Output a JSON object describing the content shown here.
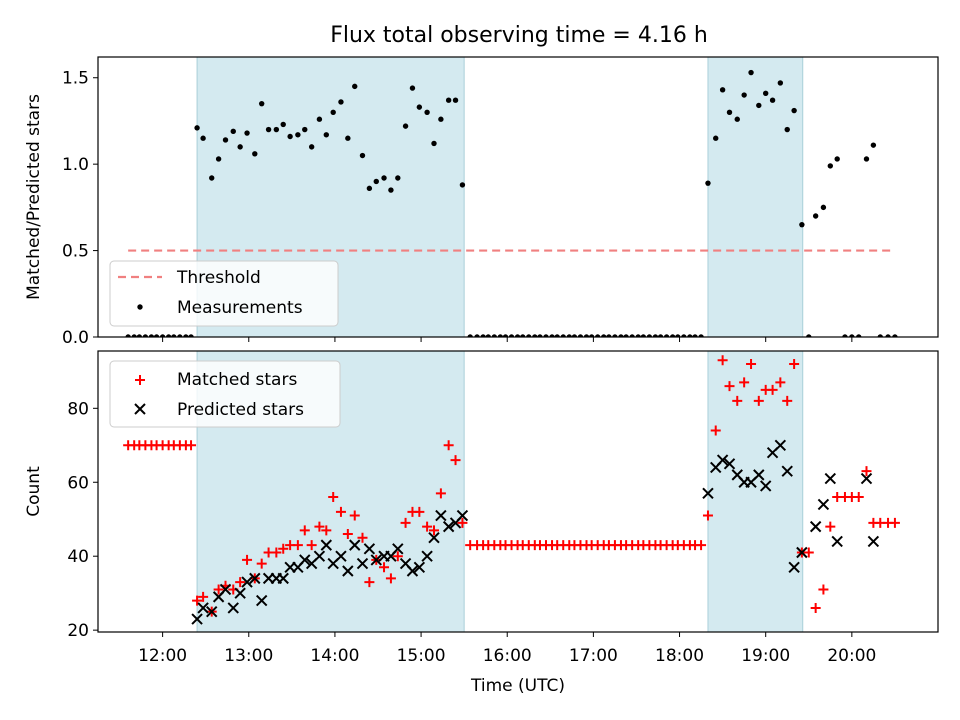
{
  "title": "Flux total observing time = 4.16 h",
  "colors": {
    "band": "#d4eaf0",
    "threshold": "#f08080",
    "matched": "#ff0000",
    "predicted": "#000000",
    "measurement": "#000000"
  },
  "chart_data": [
    {
      "type": "scatter",
      "panel": "top",
      "ylabel": "Matched/Predicted stars",
      "ylim": [
        0,
        1.62
      ],
      "xlim": [
        11.25,
        21.0
      ],
      "yticks": [
        0.0,
        0.5,
        1.0,
        1.5
      ],
      "ytick_labels": [
        "0.0",
        "0.5",
        "1.0",
        "1.5"
      ],
      "legend": {
        "location": "lower-left",
        "entries": [
          "Threshold",
          "Measurements"
        ]
      },
      "threshold": {
        "name": "Threshold",
        "value": 0.5,
        "x": [
          11.6,
          20.45
        ]
      },
      "shaded_intervals": [
        [
          12.4,
          15.5
        ],
        [
          18.33,
          19.43
        ]
      ],
      "series": [
        {
          "name": "Measurements",
          "marker": "dot",
          "x": [
            11.6,
            11.67,
            11.73,
            11.8,
            11.87,
            11.93,
            12.0,
            12.07,
            12.13,
            12.2,
            12.27,
            12.33,
            12.4,
            12.47,
            12.57,
            12.65,
            12.73,
            12.82,
            12.9,
            12.98,
            13.07,
            13.15,
            13.23,
            13.32,
            13.4,
            13.48,
            13.57,
            13.65,
            13.73,
            13.82,
            13.9,
            13.98,
            14.07,
            14.15,
            14.23,
            14.32,
            14.4,
            14.48,
            14.57,
            14.65,
            14.73,
            14.82,
            14.9,
            14.98,
            15.07,
            15.15,
            15.23,
            15.32,
            15.4,
            15.48,
            15.57,
            15.65,
            15.72,
            15.78,
            15.85,
            15.92,
            15.98,
            16.05,
            16.12,
            16.18,
            16.25,
            16.32,
            16.38,
            16.45,
            16.52,
            16.58,
            16.65,
            16.72,
            16.78,
            16.85,
            16.92,
            16.98,
            17.05,
            17.12,
            17.18,
            17.25,
            17.32,
            17.38,
            17.45,
            17.52,
            17.58,
            17.65,
            17.72,
            17.78,
            17.85,
            17.92,
            17.98,
            18.05,
            18.12,
            18.18,
            18.25,
            18.33,
            18.42,
            18.5,
            18.58,
            18.67,
            18.75,
            18.83,
            18.92,
            19.0,
            19.08,
            19.17,
            19.25,
            19.33,
            19.42,
            19.5,
            19.58,
            19.67,
            19.75,
            19.83,
            19.92,
            20.0,
            20.08,
            20.17,
            20.25,
            20.33,
            20.42,
            20.5
          ],
          "y": [
            0,
            0,
            0,
            0,
            0,
            0,
            0,
            0,
            0,
            0,
            0,
            0,
            1.21,
            1.15,
            0.92,
            1.03,
            1.14,
            1.19,
            1.1,
            1.18,
            1.06,
            1.35,
            1.2,
            1.2,
            1.23,
            1.16,
            1.17,
            1.2,
            1.1,
            1.26,
            1.17,
            1.3,
            1.36,
            1.15,
            1.45,
            1.05,
            0.86,
            0.9,
            0.92,
            0.85,
            0.92,
            1.22,
            1.44,
            1.33,
            1.3,
            1.12,
            1.26,
            1.37,
            1.37,
            0.88,
            0,
            0,
            0,
            0,
            0,
            0,
            0,
            0,
            0,
            0,
            0,
            0,
            0,
            0,
            0,
            0,
            0,
            0,
            0,
            0,
            0,
            0,
            0,
            0,
            0,
            0,
            0,
            0,
            0,
            0,
            0,
            0,
            0,
            0,
            0,
            0,
            0,
            0,
            0,
            0,
            0,
            0.89,
            1.15,
            1.43,
            1.3,
            1.26,
            1.4,
            1.53,
            1.34,
            1.41,
            1.37,
            1.47,
            1.2,
            1.31,
            0.65,
            0,
            0.7,
            0.75,
            0.99,
            1.03,
            0,
            0,
            0,
            1.03,
            1.11,
            0,
            0,
            0
          ]
        }
      ]
    },
    {
      "type": "scatter",
      "panel": "bottom",
      "xlabel": "Time (UTC)",
      "ylabel": "Count",
      "ylim": [
        19.5,
        95.5
      ],
      "xlim": [
        11.25,
        21.0
      ],
      "xticks": [
        12,
        13,
        14,
        15,
        16,
        17,
        18,
        19,
        20
      ],
      "xtick_labels": [
        "12:00",
        "13:00",
        "14:00",
        "15:00",
        "16:00",
        "17:00",
        "18:00",
        "19:00",
        "20:00"
      ],
      "yticks": [
        20,
        40,
        60,
        80
      ],
      "ytick_labels": [
        "20",
        "40",
        "60",
        "80"
      ],
      "legend": {
        "location": "upper-left",
        "entries": [
          "Matched stars",
          "Predicted stars"
        ]
      },
      "shaded_intervals": [
        [
          12.4,
          15.5
        ],
        [
          18.33,
          19.43
        ]
      ],
      "series": [
        {
          "name": "Matched stars",
          "marker": "plus",
          "x": [
            11.6,
            11.67,
            11.73,
            11.8,
            11.87,
            11.93,
            12.0,
            12.07,
            12.13,
            12.2,
            12.27,
            12.33,
            12.4,
            12.47,
            12.57,
            12.65,
            12.73,
            12.82,
            12.9,
            12.98,
            13.07,
            13.15,
            13.23,
            13.32,
            13.4,
            13.48,
            13.57,
            13.65,
            13.73,
            13.82,
            13.9,
            13.98,
            14.07,
            14.15,
            14.23,
            14.32,
            14.4,
            14.48,
            14.57,
            14.65,
            14.73,
            14.82,
            14.9,
            14.98,
            15.07,
            15.15,
            15.23,
            15.32,
            15.4,
            15.48,
            15.57,
            15.65,
            15.72,
            15.78,
            15.85,
            15.92,
            15.98,
            16.05,
            16.12,
            16.18,
            16.25,
            16.32,
            16.38,
            16.45,
            16.52,
            16.58,
            16.65,
            16.72,
            16.78,
            16.85,
            16.92,
            16.98,
            17.05,
            17.12,
            17.18,
            17.25,
            17.32,
            17.38,
            17.45,
            17.52,
            17.58,
            17.65,
            17.72,
            17.78,
            17.85,
            17.92,
            17.98,
            18.05,
            18.12,
            18.18,
            18.25,
            18.33,
            18.42,
            18.5,
            18.58,
            18.67,
            18.75,
            18.83,
            18.92,
            19.0,
            19.08,
            19.17,
            19.25,
            19.33,
            19.42,
            19.5,
            19.58,
            19.67,
            19.75,
            19.83,
            19.92,
            20.0,
            20.08,
            20.17,
            20.25,
            20.33,
            20.42,
            20.5
          ],
          "y": [
            70,
            70,
            70,
            70,
            70,
            70,
            70,
            70,
            70,
            70,
            70,
            70,
            28,
            29,
            25,
            31,
            32,
            31,
            33,
            39,
            34,
            38,
            41,
            41,
            42,
            43,
            43,
            47,
            43,
            48,
            47,
            56,
            52,
            46,
            51,
            45,
            33,
            39,
            37,
            34,
            40,
            49,
            52,
            52,
            48,
            47,
            57,
            70,
            66,
            49,
            43,
            43,
            43,
            43,
            43,
            43,
            43,
            43,
            43,
            43,
            43,
            43,
            43,
            43,
            43,
            43,
            43,
            43,
            43,
            43,
            43,
            43,
            43,
            43,
            43,
            43,
            43,
            43,
            43,
            43,
            43,
            43,
            43,
            43,
            43,
            43,
            43,
            43,
            43,
            43,
            43,
            51,
            74,
            93,
            86,
            82,
            87,
            92,
            82,
            85,
            85,
            87,
            82,
            92,
            41,
            41,
            26,
            31,
            48,
            56,
            56,
            56,
            56,
            63,
            49,
            49,
            49,
            49
          ]
        },
        {
          "name": "Predicted stars",
          "marker": "x",
          "x": [
            12.4,
            12.47,
            12.57,
            12.65,
            12.73,
            12.82,
            12.9,
            12.98,
            13.07,
            13.15,
            13.23,
            13.32,
            13.4,
            13.48,
            13.57,
            13.65,
            13.73,
            13.82,
            13.9,
            13.98,
            14.07,
            14.15,
            14.23,
            14.32,
            14.4,
            14.48,
            14.57,
            14.65,
            14.73,
            14.82,
            14.9,
            14.98,
            15.07,
            15.15,
            15.23,
            15.32,
            15.4,
            15.48,
            18.33,
            18.42,
            18.5,
            18.58,
            18.67,
            18.75,
            18.83,
            18.92,
            19.0,
            19.08,
            19.17,
            19.25,
            19.33,
            19.42,
            19.58,
            19.67,
            19.75,
            19.83,
            20.17,
            20.25
          ],
          "y": [
            23,
            26,
            25,
            29,
            31,
            26,
            30,
            33,
            34,
            28,
            34,
            34,
            34,
            37,
            37,
            39,
            38,
            40,
            43,
            38,
            40,
            36,
            43,
            38,
            42,
            39,
            40,
            40,
            42,
            38,
            36,
            37,
            40,
            45,
            51,
            48,
            49,
            51,
            57,
            64,
            66,
            65,
            62,
            60,
            60,
            62,
            59,
            68,
            70,
            63,
            37,
            41,
            48,
            54,
            61,
            44,
            61,
            44
          ]
        }
      ]
    }
  ]
}
